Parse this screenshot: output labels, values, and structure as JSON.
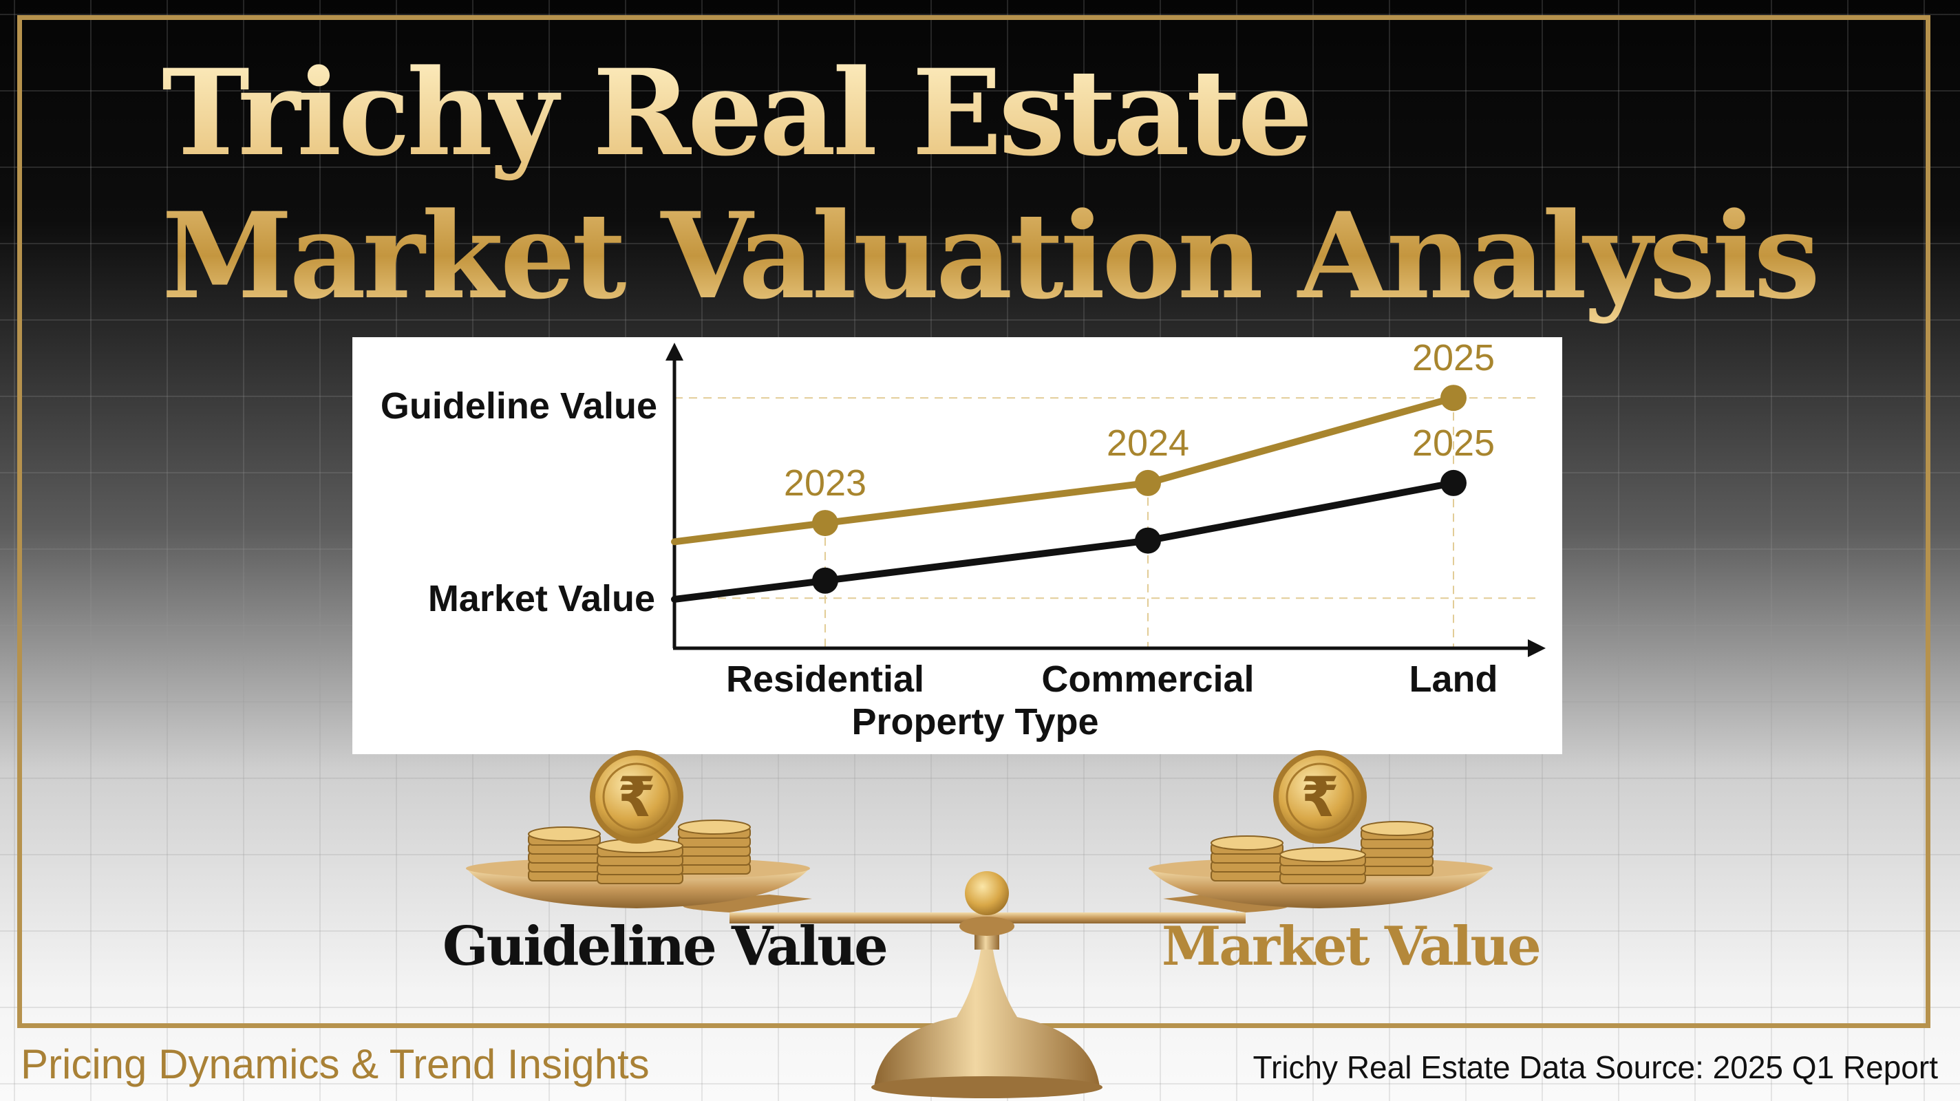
{
  "title": {
    "line1": "Trichy Real Estate",
    "line2": "Market Valuation Analysis"
  },
  "chart_data": {
    "type": "line",
    "categories": [
      "Residential",
      "Commercial",
      "Land"
    ],
    "xlabel": "Property Type",
    "y_axis_labels": [
      "Guideline Value",
      "Market Value"
    ],
    "series": [
      {
        "name": "Guideline Value",
        "color": "#a8852e",
        "values": [
          2.5,
          3.3,
          5.0
        ],
        "point_labels": [
          "2023",
          "2024",
          "2025"
        ]
      },
      {
        "name": "Market Value",
        "color": "#111111",
        "values": [
          1.35,
          2.15,
          3.3
        ],
        "point_labels": [
          "",
          "",
          "2025"
        ]
      }
    ],
    "ylim": [
      0,
      5.8
    ],
    "reference_lines": [
      5.0,
      1.0
    ],
    "grid": false,
    "legend": "none"
  },
  "scale": {
    "left_label": "Guideline Value",
    "right_label": "Market Value",
    "coin_symbol": "₹"
  },
  "footer": {
    "left": "Pricing Dynamics & Trend Insights",
    "right": "Trichy Real Estate Data Source: 2025 Q1 Report"
  }
}
